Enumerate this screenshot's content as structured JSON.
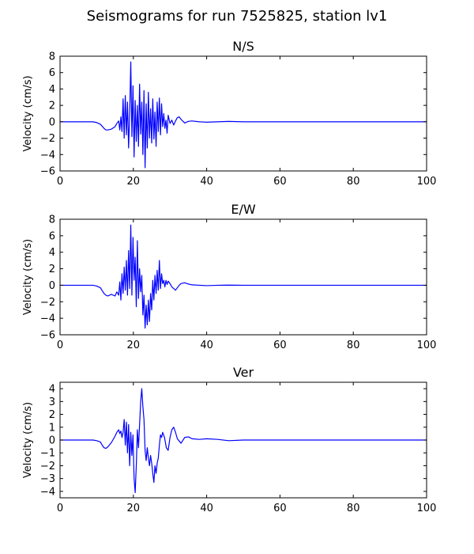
{
  "figure": {
    "title": "Seismograms for run 7525825, station lv1"
  },
  "chart_data": [
    {
      "type": "line",
      "title": "N/S",
      "xlabel": "",
      "ylabel": "Velocity (cm/s)",
      "xlim": [
        0,
        100
      ],
      "ylim": [
        -6,
        8
      ],
      "xticks": [
        0,
        20,
        40,
        60,
        80,
        100
      ],
      "yticks": [
        -6,
        -4,
        -2,
        0,
        2,
        4,
        6,
        8
      ],
      "grid": false,
      "color": "#0000ff",
      "series": [
        {
          "x": [
            0,
            9,
            10,
            11,
            12,
            12.5,
            13,
            14,
            15,
            15.5,
            16,
            16.3,
            16.6,
            16.9,
            17.2,
            17.5,
            17.8,
            18.1,
            18.4,
            18.7,
            19,
            19.3,
            19.6,
            19.9,
            20.2,
            20.5,
            20.8,
            21.1,
            21.4,
            21.7,
            22,
            22.3,
            22.6,
            22.9,
            23.2,
            23.5,
            23.8,
            24.1,
            24.4,
            24.7,
            25,
            25.3,
            25.6,
            25.9,
            26.2,
            26.5,
            26.8,
            27.1,
            27.4,
            27.7,
            28,
            28.3,
            28.6,
            28.9,
            29.2,
            29.5,
            30,
            30.5,
            31,
            31.5,
            32,
            32.5,
            33,
            34,
            35,
            36,
            38,
            40,
            43,
            46,
            50,
            100
          ],
          "y": [
            0,
            0,
            -0.1,
            -0.3,
            -0.8,
            -1.0,
            -1.0,
            -0.9,
            -0.6,
            -0.2,
            0.1,
            -1.0,
            0.6,
            -1.2,
            2.8,
            -2.0,
            3.2,
            -1.6,
            2.4,
            -3.2,
            1.0,
            7.3,
            -1.8,
            4.4,
            -4.3,
            2.6,
            -2.4,
            2.0,
            -3.0,
            4.6,
            -1.5,
            2.4,
            -4.0,
            3.8,
            -5.6,
            2.2,
            -3.2,
            3.6,
            -2.0,
            1.6,
            -2.6,
            2.8,
            -2.1,
            1.2,
            -3.0,
            2.4,
            -1.2,
            2.9,
            -1.6,
            2.2,
            -0.6,
            1.0,
            -0.8,
            0.2,
            -1.4,
            0.8,
            -0.2,
            0.2,
            -0.4,
            0.1,
            0.5,
            0.6,
            0.3,
            -0.15,
            0.05,
            0.1,
            0,
            -0.05,
            0,
            0.05,
            0,
            0
          ]
        }
      ]
    },
    {
      "type": "line",
      "title": "E/W",
      "xlabel": "",
      "ylabel": "Velocity (cm/s)",
      "xlim": [
        0,
        100
      ],
      "ylim": [
        -6,
        8
      ],
      "xticks": [
        0,
        20,
        40,
        60,
        80,
        100
      ],
      "yticks": [
        -6,
        -4,
        -2,
        0,
        2,
        4,
        6,
        8
      ],
      "grid": false,
      "color": "#0000ff",
      "series": [
        {
          "x": [
            0,
            9,
            10,
            11,
            12,
            12.5,
            13,
            14,
            15,
            15.5,
            16,
            16.3,
            16.6,
            16.9,
            17.2,
            17.5,
            17.8,
            18.1,
            18.4,
            18.7,
            19,
            19.3,
            19.6,
            19.9,
            20.2,
            20.5,
            20.8,
            21.1,
            21.4,
            21.7,
            22,
            22.3,
            22.6,
            22.9,
            23.2,
            23.5,
            23.8,
            24.1,
            24.4,
            24.7,
            25,
            25.3,
            25.6,
            25.9,
            26.2,
            26.5,
            26.8,
            27.1,
            27.4,
            27.7,
            28,
            28.3,
            28.6,
            28.9,
            29.2,
            29.5,
            30,
            30.5,
            31,
            31.5,
            32,
            32.5,
            33,
            34,
            35,
            36,
            38,
            40,
            43,
            46,
            50,
            100
          ],
          "y": [
            0,
            0,
            -0.1,
            -0.3,
            -1.0,
            -1.2,
            -1.3,
            -1.1,
            -1.3,
            -0.8,
            -1.2,
            0.4,
            -1.8,
            1.4,
            -1.0,
            2.2,
            -0.6,
            3.0,
            -1.2,
            4.2,
            -0.4,
            7.3,
            -1.2,
            5.8,
            0.6,
            3.4,
            -2.6,
            5.4,
            -1.6,
            2.0,
            -0.8,
            1.2,
            -3.6,
            -1.2,
            -5.2,
            -2.4,
            -4.8,
            -1.8,
            -4.4,
            -1.0,
            -3.0,
            0.6,
            -1.8,
            1.2,
            -1.0,
            1.8,
            -0.6,
            3.0,
            -0.4,
            1.4,
            0.2,
            0.6,
            -0.2,
            0.6,
            0.1,
            0.5,
            0.2,
            -0.2,
            -0.4,
            -0.6,
            -0.3,
            0,
            0.2,
            0.3,
            0.15,
            0.05,
            0,
            -0.05,
            0,
            0.02,
            0,
            0
          ]
        }
      ]
    },
    {
      "type": "line",
      "title": "Ver",
      "xlabel": "",
      "ylabel": "Velocity (cm/s)",
      "xlim": [
        0,
        100
      ],
      "ylim": [
        -4.5,
        4.5
      ],
      "xticks": [
        0,
        20,
        40,
        60,
        80,
        100
      ],
      "yticks": [
        -4,
        -3,
        -2,
        -1,
        0,
        1,
        2,
        3,
        4
      ],
      "grid": false,
      "color": "#0000ff",
      "series": [
        {
          "x": [
            0,
            9,
            10,
            11,
            11.5,
            12,
            12.5,
            13,
            14,
            15,
            15.5,
            16,
            16.3,
            16.6,
            16.9,
            17.2,
            17.5,
            17.8,
            18.1,
            18.4,
            18.7,
            19,
            19.3,
            19.6,
            19.9,
            20.2,
            20.5,
            20.8,
            21.1,
            21.4,
            21.7,
            22,
            22.3,
            22.6,
            22.9,
            23.2,
            23.5,
            23.8,
            24.1,
            24.4,
            24.7,
            25,
            25.3,
            25.6,
            25.9,
            26.2,
            26.5,
            26.8,
            27.1,
            27.4,
            27.7,
            28,
            28.5,
            29,
            29.5,
            30,
            30.5,
            31,
            31.5,
            32,
            33,
            34,
            35,
            36,
            38,
            40,
            43,
            46,
            50,
            100
          ],
          "y": [
            0,
            0,
            -0.05,
            -0.15,
            -0.4,
            -0.6,
            -0.65,
            -0.55,
            -0.2,
            0.3,
            0.6,
            0.8,
            0.5,
            0.7,
            0.2,
            0.6,
            1.6,
            -0.4,
            1.4,
            -1.0,
            1.2,
            -2.0,
            0.6,
            -1.2,
            0.4,
            -3.0,
            -4.1,
            -2.0,
            0.8,
            -0.6,
            1.2,
            3.0,
            4.0,
            2.6,
            1.6,
            -0.8,
            -1.6,
            -0.6,
            -1.4,
            -2.0,
            -1.2,
            -1.8,
            -2.6,
            -3.3,
            -2.0,
            -2.6,
            -1.8,
            -1.4,
            -0.4,
            0.4,
            0.2,
            0.6,
            0.2,
            -0.6,
            -0.8,
            0.2,
            0.8,
            1.0,
            0.6,
            0.1,
            -0.25,
            0.2,
            0.25,
            0.1,
            0.05,
            0.1,
            0.05,
            -0.05,
            0,
            0
          ]
        }
      ]
    }
  ]
}
